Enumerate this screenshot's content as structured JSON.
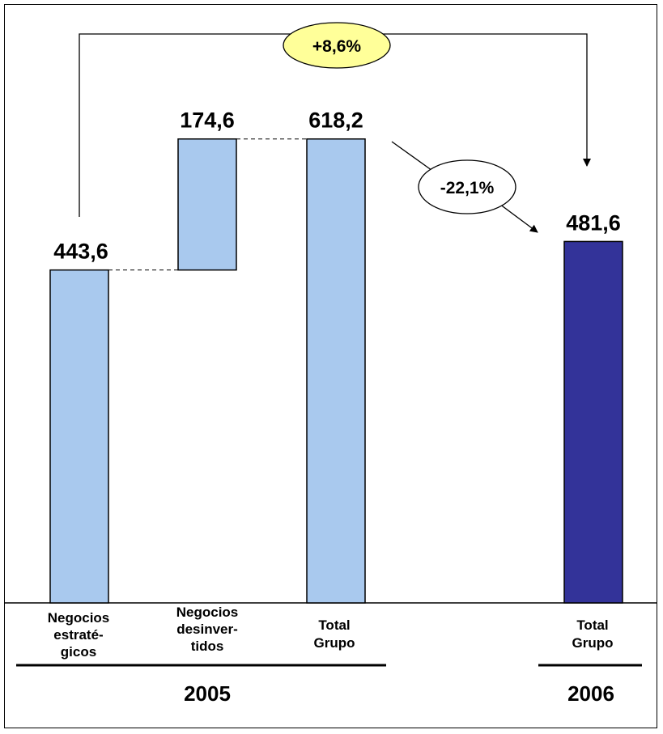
{
  "chart_data": {
    "type": "bar",
    "subtype": "waterfall",
    "categories": [
      [
        "Negocios",
        "estraté-",
        "gicos"
      ],
      [
        "Negocios",
        "desinver-",
        "tidos"
      ],
      [
        "Total",
        "Grupo"
      ],
      [
        "Total",
        "Grupo"
      ]
    ],
    "bars": [
      {
        "base": 0,
        "value": 443.6,
        "label": "443,6",
        "color": "#a9c9ee",
        "group": "2005"
      },
      {
        "base": 443.6,
        "value": 174.6,
        "label": "174,6",
        "color": "#a9c9ee",
        "group": "2005"
      },
      {
        "base": 0,
        "value": 618.2,
        "label": "618,2",
        "color": "#a9c9ee",
        "group": "2005"
      },
      {
        "base": 0,
        "value": 481.6,
        "label": "481,6",
        "color": "#333399",
        "group": "2006"
      }
    ],
    "groups": [
      "2005",
      "2006"
    ],
    "annotations": {
      "growth_strategic": "+8,6%",
      "change_total": "-22,1%"
    },
    "colors": {
      "light_bar": "#a9c9ee",
      "dark_bar": "#333399",
      "highlight_bubble": "#ffff99"
    }
  }
}
